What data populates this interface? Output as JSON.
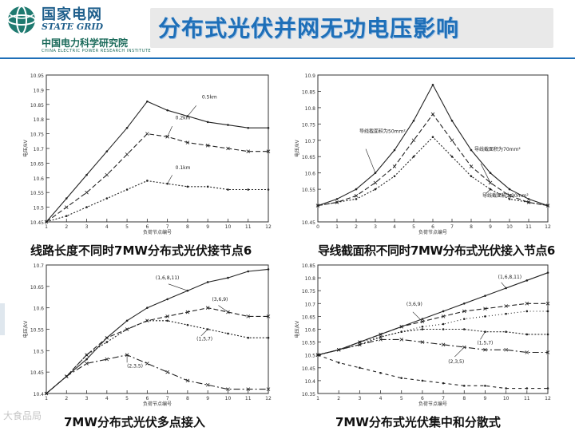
{
  "header": {
    "org_cn": "国家电网",
    "org_en": "STATE GRID",
    "institute_cn": "中国电力科学研究院",
    "institute_en": "CHINA ELECTRIC POWER RESEARCH INSTITUTE",
    "title": "分布式光伏并网无功电压影响"
  },
  "watermark": "大食品局",
  "colors": {
    "title": "#1e6fb8",
    "header_rule": "#1e6fb8",
    "line": "#222222"
  },
  "chart_data": [
    {
      "type": "line",
      "caption": "线路长度不同时7MW分布式光伏接节点6",
      "xlabel": "负荷节点编号",
      "ylabel": "电压/kV",
      "ylim": [
        10.45,
        10.95
      ],
      "yticks": [
        10.45,
        10.5,
        10.55,
        10.6,
        10.65,
        10.7,
        10.75,
        10.8,
        10.85,
        10.9,
        10.95
      ],
      "ytick_labels": [
        "10.45",
        "10.5",
        "10.55",
        "10.6",
        "10.65",
        "10.7",
        "10.75",
        "10.8",
        "10.85",
        "10.9",
        "10.95"
      ],
      "xlim": [
        1,
        12
      ],
      "xticks": [
        1,
        2,
        3,
        4,
        5,
        6,
        7,
        8,
        9,
        10,
        11,
        12
      ],
      "series": [
        {
          "name": "0.5km",
          "x": [
            1,
            2,
            3,
            4,
            5,
            6,
            7,
            8,
            9,
            10,
            11,
            12
          ],
          "y": [
            10.45,
            10.53,
            10.61,
            10.69,
            10.77,
            10.86,
            10.83,
            10.81,
            10.79,
            10.78,
            10.77,
            10.77
          ]
        },
        {
          "name": "0.2km",
          "x": [
            1,
            2,
            3,
            4,
            5,
            6,
            7,
            8,
            9,
            10,
            11,
            12
          ],
          "y": [
            10.45,
            10.5,
            10.55,
            10.61,
            10.68,
            10.75,
            10.74,
            10.72,
            10.71,
            10.7,
            10.69,
            10.69
          ]
        },
        {
          "name": "0.1km",
          "x": [
            1,
            2,
            3,
            4,
            5,
            6,
            7,
            8,
            9,
            10,
            11,
            12
          ],
          "y": [
            10.45,
            10.47,
            10.5,
            10.53,
            10.56,
            10.59,
            10.58,
            10.57,
            10.57,
            10.56,
            10.56,
            10.56
          ]
        }
      ]
    },
    {
      "type": "line",
      "caption": "导线截面积不同时7MW分布式光伏接入节点6",
      "xlabel": "负荷节点编号",
      "ylabel": "电压/kV",
      "ylim": [
        10.45,
        10.9
      ],
      "yticks": [
        10.45,
        10.55,
        10.6,
        10.65,
        10.7,
        10.75,
        10.8,
        10.85,
        10.9
      ],
      "ytick_labels": [
        "10.45",
        "10.55",
        "10.6",
        "10.65",
        "10.7",
        "10.75",
        "10.8",
        "10.85",
        "10.9"
      ],
      "xlim": [
        0,
        12
      ],
      "xticks": [
        0,
        1,
        2,
        3,
        4,
        5,
        6,
        7,
        8,
        9,
        10,
        11,
        12
      ],
      "series": [
        {
          "name": "导线截面积为50mm²",
          "x": [
            0,
            1,
            2,
            3,
            4,
            5,
            6,
            7,
            8,
            9,
            10,
            11,
            12
          ],
          "y": [
            10.5,
            10.52,
            10.55,
            10.6,
            10.67,
            10.76,
            10.87,
            10.76,
            10.67,
            10.6,
            10.55,
            10.52,
            10.5
          ]
        },
        {
          "name": "导线截面积为70mm²",
          "x": [
            0,
            1,
            2,
            3,
            4,
            5,
            6,
            7,
            8,
            9,
            10,
            11,
            12
          ],
          "y": [
            10.5,
            10.51,
            10.53,
            10.57,
            10.62,
            10.7,
            10.78,
            10.7,
            10.62,
            10.57,
            10.53,
            10.51,
            10.5
          ]
        },
        {
          "name": "导线截面积为90mm²",
          "x": [
            0,
            1,
            2,
            3,
            4,
            5,
            6,
            7,
            8,
            9,
            10,
            11,
            12
          ],
          "y": [
            10.5,
            10.51,
            10.52,
            10.55,
            10.59,
            10.65,
            10.71,
            10.65,
            10.59,
            10.55,
            10.52,
            10.51,
            10.5
          ]
        }
      ]
    },
    {
      "type": "line",
      "caption": "7MW分布式光伏多点接入",
      "xlabel": "负荷节点编号",
      "ylabel": "电压/kV",
      "ylim": [
        10.4,
        10.7
      ],
      "yticks": [
        10.4,
        10.45,
        10.5,
        10.55,
        10.6,
        10.65,
        10.7
      ],
      "ytick_labels": [
        "10.4",
        "10.45",
        "10.5",
        "10.55",
        "10.6",
        "10.65",
        "10.7"
      ],
      "xlim": [
        1,
        12
      ],
      "xticks": [
        1,
        2,
        3,
        4,
        5,
        6,
        7,
        8,
        9,
        10,
        11,
        12
      ],
      "series": [
        {
          "name": "(1,6,8,11)",
          "x": [
            1,
            2,
            3,
            4,
            5,
            6,
            7,
            8,
            9,
            10,
            11,
            12
          ],
          "y": [
            10.4,
            10.44,
            10.48,
            10.53,
            10.57,
            10.6,
            10.62,
            10.64,
            10.66,
            10.67,
            10.685,
            10.69
          ]
        },
        {
          "name": "(3,6,9)",
          "x": [
            1,
            2,
            3,
            4,
            5,
            6,
            7,
            8,
            9,
            10,
            11,
            12
          ],
          "y": [
            10.4,
            10.44,
            10.49,
            10.53,
            10.55,
            10.57,
            10.58,
            10.59,
            10.6,
            10.59,
            10.58,
            10.58
          ]
        },
        {
          "name": "(1,5,7)",
          "x": [
            1,
            2,
            3,
            4,
            5,
            6,
            7,
            8,
            9,
            10,
            11,
            12
          ],
          "y": [
            10.4,
            10.44,
            10.49,
            10.52,
            10.55,
            10.57,
            10.57,
            10.56,
            10.55,
            10.54,
            10.53,
            10.53
          ]
        },
        {
          "name": "(2,3,5)",
          "x": [
            1,
            2,
            3,
            4,
            5,
            6,
            7,
            8,
            9,
            10,
            11,
            12
          ],
          "y": [
            10.4,
            10.44,
            10.47,
            10.48,
            10.49,
            10.47,
            10.45,
            10.43,
            10.42,
            10.41,
            10.41,
            10.41
          ]
        }
      ]
    },
    {
      "type": "line",
      "caption": "7MW分布式光伏集中和分散式",
      "xlabel": "负荷节点编号",
      "ylabel": "电压/kV",
      "ylim": [
        10.35,
        10.85
      ],
      "yticks": [
        10.35,
        10.4,
        10.45,
        10.5,
        10.55,
        10.6,
        10.65,
        10.7,
        10.75,
        10.8,
        10.85
      ],
      "ytick_labels": [
        "10.35",
        "10.4",
        "10.45",
        "10.5",
        "10.55",
        "10.6",
        "10.65",
        "10.7",
        "10.75",
        "10.8",
        "10.85"
      ],
      "xlim": [
        1,
        12
      ],
      "xticks": [
        1,
        2,
        3,
        4,
        5,
        6,
        7,
        8,
        9,
        10,
        11,
        12
      ],
      "series": [
        {
          "name": "(1,6,8,11)",
          "x": [
            1,
            2,
            3,
            4,
            5,
            6,
            7,
            8,
            9,
            10,
            11,
            12
          ],
          "y": [
            10.5,
            10.52,
            10.55,
            10.58,
            10.61,
            10.64,
            10.67,
            10.7,
            10.73,
            10.76,
            10.79,
            10.82
          ]
        },
        {
          "name": "(3,6,9)",
          "x": [
            1,
            2,
            3,
            4,
            5,
            6,
            7,
            8,
            9,
            10,
            11,
            12
          ],
          "y": [
            10.5,
            10.52,
            10.55,
            10.58,
            10.61,
            10.63,
            10.65,
            10.67,
            10.68,
            10.69,
            10.7,
            10.7
          ]
        },
        {
          "name": "(1,5,7)",
          "x": [
            1,
            2,
            3,
            4,
            5,
            6,
            7,
            8,
            9,
            10,
            11,
            12
          ],
          "y": [
            10.5,
            10.52,
            10.54,
            10.57,
            10.59,
            10.6,
            10.6,
            10.6,
            10.59,
            10.59,
            10.58,
            10.58
          ]
        },
        {
          "name": "(2,3,5)",
          "x": [
            1,
            2,
            3,
            4,
            5,
            6,
            7,
            8,
            9,
            10,
            11,
            12
          ],
          "y": [
            10.5,
            10.52,
            10.54,
            10.56,
            10.56,
            10.55,
            10.54,
            10.53,
            10.52,
            10.52,
            10.51,
            10.51
          ]
        },
        {
          "name": "",
          "x": [
            1,
            2,
            3,
            4,
            5,
            6,
            7,
            8,
            9,
            10,
            11,
            12
          ],
          "y": [
            10.5,
            10.47,
            10.45,
            10.43,
            10.41,
            10.4,
            10.39,
            10.38,
            10.38,
            10.37,
            10.37,
            10.37
          ]
        },
        {
          "name": "",
          "x": [
            1,
            2,
            3,
            4,
            5,
            6,
            7,
            8,
            9,
            10,
            11,
            12
          ],
          "y": [
            10.5,
            10.52,
            10.55,
            10.57,
            10.59,
            10.61,
            10.62,
            10.64,
            10.65,
            10.66,
            10.67,
            10.67
          ]
        }
      ]
    }
  ]
}
